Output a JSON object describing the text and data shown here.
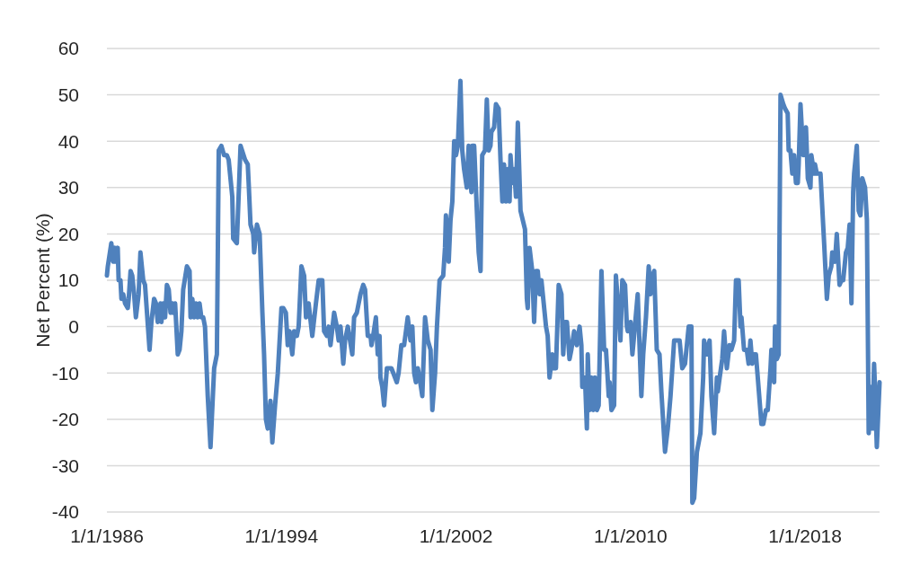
{
  "chart_data": {
    "type": "line",
    "ylabel": "Net Percent (%)",
    "x": [
      "1986-01-01",
      "1986-01-16",
      "1986-03-16",
      "1986-04-16",
      "1986-05-16",
      "1986-06-01",
      "1986-07-01",
      "1986-07-16",
      "1986-08-16",
      "1986-09-01",
      "1986-10-01",
      "1986-11-01",
      "1986-12-16",
      "1987-01-01",
      "1987-02-01",
      "1987-03-01",
      "1987-04-01",
      "1987-05-01",
      "1987-06-16",
      "1987-07-16",
      "1987-09-01",
      "1987-10-01",
      "1987-12-16",
      "1988-01-16",
      "1988-03-01",
      "1988-04-01",
      "1988-05-01",
      "1988-06-16",
      "1988-07-01",
      "1988-08-01",
      "1988-09-01",
      "1988-10-01",
      "1988-11-01",
      "1988-12-01",
      "1989-01-01",
      "1989-01-16",
      "1989-02-16",
      "1989-04-01",
      "1989-05-01",
      "1989-06-01",
      "1989-07-01",
      "1989-09-01",
      "1989-10-16",
      "1989-11-01",
      "1989-12-01",
      "1990-01-01",
      "1990-02-01",
      "1990-03-01",
      "1990-04-01",
      "1990-05-01",
      "1990-06-01",
      "1990-07-01",
      "1990-08-16",
      "1990-10-01",
      "1990-12-01",
      "1991-01-16",
      "1991-02-16",
      "1991-04-01",
      "1991-05-16",
      "1991-07-01",
      "1991-08-01",
      "1991-10-01",
      "1991-10-16",
      "1991-12-16",
      "1992-02-16",
      "1992-05-01",
      "1992-06-16",
      "1992-07-01",
      "1992-08-01",
      "1992-09-16",
      "1992-10-01",
      "1992-11-16",
      "1993-01-01",
      "1993-02-16",
      "1993-03-16",
      "1993-04-16",
      "1993-05-16",
      "1993-07-01",
      "1993-08-01",
      "1993-09-16",
      "1993-11-01",
      "1994-01-01",
      "1994-02-01",
      "1994-03-16",
      "1994-04-16",
      "1994-05-16",
      "1994-07-01",
      "1994-08-01",
      "1994-09-16",
      "1994-10-16",
      "1994-12-01",
      "1995-01-16",
      "1995-02-16",
      "1995-04-01",
      "1995-06-01",
      "1995-08-01",
      "1995-09-16",
      "1995-11-16",
      "1995-12-16",
      "1996-02-01",
      "1996-03-01",
      "1996-04-01",
      "1996-06-01",
      "1996-07-16",
      "1996-08-16",
      "1996-09-16",
      "1996-11-01",
      "1996-12-01",
      "1997-01-16",
      "1997-04-01",
      "1997-05-01",
      "1997-06-16",
      "1997-08-16",
      "1997-10-01",
      "1997-11-01",
      "1997-12-16",
      "1998-02-01",
      "1998-02-16",
      "1998-03-16",
      "1998-05-01",
      "1998-06-01",
      "1998-07-01",
      "1998-07-16",
      "1998-08-16",
      "1998-09-16",
      "1998-11-01",
      "1999-01-16",
      "1999-02-16",
      "1999-04-16",
      "1999-05-16",
      "1999-07-01",
      "1999-08-16",
      "1999-09-16",
      "1999-10-16",
      "1999-12-01",
      "2000-01-01",
      "2000-02-01",
      "2000-03-01",
      "2000-04-01",
      "2000-05-01",
      "2000-06-16",
      "2000-08-01",
      "2000-09-16",
      "2000-11-01",
      "2000-12-01",
      "2001-01-16",
      "2001-02-16",
      "2001-04-01",
      "2001-06-01",
      "2001-07-01",
      "2001-07-16",
      "2001-08-01",
      "2001-09-01",
      "2001-10-01",
      "2001-11-01",
      "2001-12-01",
      "2001-12-16",
      "2002-01-01",
      "2002-02-01",
      "2002-03-16",
      "2002-04-16",
      "2002-05-16",
      "2002-07-01",
      "2002-08-01",
      "2002-09-16",
      "2002-10-01",
      "2002-11-01",
      "2002-12-16",
      "2003-01-16",
      "2003-02-16",
      "2003-03-16",
      "2003-05-01",
      "2003-06-01",
      "2003-07-01",
      "2003-08-01",
      "2003-08-16",
      "2003-10-01",
      "2003-11-01",
      "2003-12-16",
      "2004-01-16",
      "2004-02-16",
      "2004-03-16",
      "2004-04-16",
      "2004-05-16",
      "2004-06-16",
      "2004-07-01",
      "2004-08-01",
      "2004-09-01",
      "2004-10-01",
      "2004-11-01",
      "2004-12-16",
      "2005-03-01",
      "2005-04-01",
      "2005-04-16",
      "2005-05-16",
      "2005-07-01",
      "2005-08-01",
      "2005-09-01",
      "2005-10-01",
      "2005-11-01",
      "2005-12-01",
      "2006-01-01",
      "2006-02-16",
      "2006-03-16",
      "2006-04-16",
      "2006-06-01",
      "2006-07-01",
      "2006-08-01",
      "2006-09-16",
      "2006-11-01",
      "2006-12-01",
      "2007-01-01",
      "2007-02-01",
      "2007-03-16",
      "2007-04-16",
      "2007-06-01",
      "2007-07-16",
      "2007-09-01",
      "2007-10-01",
      "2007-10-16",
      "2007-12-01",
      "2008-01-01",
      "2008-01-16",
      "2008-02-16",
      "2008-03-16",
      "2008-04-16",
      "2008-05-16",
      "2008-06-16",
      "2008-07-16",
      "2008-09-01",
      "2008-10-16",
      "2008-11-16",
      "2009-01-01",
      "2009-01-16",
      "2009-02-16",
      "2009-04-01",
      "2009-05-01",
      "2009-06-16",
      "2009-07-16",
      "2009-08-16",
      "2009-10-01",
      "2009-11-01",
      "2009-11-16",
      "2010-01-01",
      "2010-02-01",
      "2010-03-01",
      "2010-05-01",
      "2010-07-01",
      "2010-08-01",
      "2010-09-16",
      "2010-11-01",
      "2010-12-01",
      "2011-01-01",
      "2011-02-01",
      "2011-03-16",
      "2011-05-01",
      "2011-06-01",
      "2011-08-01",
      "2011-09-16",
      "2011-11-01",
      "2012-01-01",
      "2012-02-16",
      "2012-04-01",
      "2012-05-16",
      "2012-07-01",
      "2012-09-01",
      "2012-10-16",
      "2012-11-01",
      "2012-12-01",
      "2013-01-16",
      "2013-03-16",
      "2013-05-01",
      "2013-05-16",
      "2013-07-01",
      "2013-08-16",
      "2013-09-16",
      "2013-11-01",
      "2013-12-16",
      "2014-01-01",
      "2014-02-01",
      "2014-03-16",
      "2014-04-16",
      "2014-06-01",
      "2014-07-16",
      "2014-08-16",
      "2014-10-01",
      "2014-11-01",
      "2014-12-16",
      "2015-01-16",
      "2015-02-01",
      "2015-03-16",
      "2015-05-01",
      "2015-06-01",
      "2015-07-01",
      "2015-08-01",
      "2015-09-01",
      "2015-10-01",
      "2015-11-01",
      "2016-01-01",
      "2016-02-01",
      "2016-03-16",
      "2016-04-16",
      "2016-06-01",
      "2016-06-16",
      "2016-08-01",
      "2016-08-16",
      "2016-09-16",
      "2016-10-16",
      "2016-11-16",
      "2017-01-01",
      "2017-02-01",
      "2017-03-16",
      "2017-04-01",
      "2017-05-01",
      "2017-06-01",
      "2017-07-01",
      "2017-08-01",
      "2017-09-01",
      "2017-09-16",
      "2017-10-16",
      "2017-12-01",
      "2018-01-01",
      "2018-01-16",
      "2018-02-16",
      "2018-04-01",
      "2018-04-16",
      "2018-06-01",
      "2018-06-16",
      "2018-07-16",
      "2018-09-16",
      "2018-11-16",
      "2019-01-01",
      "2019-02-01",
      "2019-03-16",
      "2019-04-01",
      "2019-05-16",
      "2019-06-16",
      "2019-08-01",
      "2019-09-01",
      "2019-10-01",
      "2019-11-16",
      "2019-12-16",
      "2020-01-16",
      "2020-02-16",
      "2020-03-16",
      "2020-04-01",
      "2020-05-16",
      "2020-06-16",
      "2020-07-16",
      "2020-08-16",
      "2020-10-01",
      "2020-11-01",
      "2020-12-01",
      "2021-01-01",
      "2021-02-01",
      "2021-03-01",
      "2021-03-16",
      "2021-04-16",
      "2021-06-01"
    ],
    "series": [
      {
        "color": "#4f81bd",
        "values": [
          11,
          13,
          18,
          14,
          17,
          14,
          17,
          10,
          10,
          6,
          7,
          5,
          4,
          6,
          12,
          11,
          7,
          2,
          7,
          16,
          10,
          9,
          -5,
          1,
          6,
          5,
          1,
          5,
          1,
          5,
          2,
          9,
          8,
          3,
          5,
          3,
          5,
          -6,
          -5,
          -1,
          8,
          13,
          12,
          2,
          6,
          2,
          5,
          2,
          5,
          2,
          2,
          0,
          -15,
          -26,
          -9,
          -6,
          38,
          39,
          37,
          37,
          36,
          28,
          19,
          18,
          39,
          36,
          35,
          31,
          22,
          20,
          16,
          22,
          20,
          3,
          -6,
          -20,
          -22,
          -16,
          -25,
          -17,
          -10,
          4,
          4,
          3,
          -4,
          -1,
          -6,
          -1,
          -2,
          0,
          13,
          11,
          2,
          5,
          -2,
          5,
          10,
          10,
          -1,
          -2,
          0,
          -4,
          3,
          0,
          -3,
          0,
          -8,
          -3,
          0,
          -6,
          2,
          3,
          7,
          9,
          8,
          -2,
          -2,
          -4,
          -2,
          2,
          -6,
          -2,
          -11,
          -13,
          -17,
          -9,
          -9,
          -10,
          -12,
          -10,
          -4,
          -4,
          -1,
          2,
          -3,
          0,
          -10,
          -12,
          -9,
          -11,
          -15,
          2,
          -3,
          -5,
          -18,
          -10,
          0,
          10,
          11,
          17,
          24,
          21,
          14,
          23,
          27,
          40,
          40,
          37,
          39,
          53,
          38,
          34,
          30,
          39,
          29,
          39,
          39,
          25,
          16,
          12,
          37,
          38,
          49,
          38,
          39,
          42,
          43,
          48,
          47,
          36,
          27,
          35,
          27,
          34,
          27,
          37,
          31,
          34,
          28,
          44,
          25,
          21,
          6,
          4,
          17,
          12,
          1,
          12,
          12,
          7,
          10,
          6,
          0,
          -2,
          -11,
          -6,
          -9,
          -9,
          9,
          7,
          -6,
          1,
          1,
          -7,
          -5,
          -1,
          -4,
          0,
          -4,
          -13,
          -11,
          -22,
          -6,
          -18,
          -11,
          -18,
          -11,
          -18,
          -17,
          12,
          -5,
          -5,
          -15,
          -12,
          -18,
          -17,
          11,
          3,
          -3,
          10,
          9,
          0,
          -1,
          1,
          -6,
          -2,
          7,
          -15,
          -6,
          2,
          13,
          7,
          11,
          12,
          -5,
          -6,
          -14,
          -27,
          -22,
          -15,
          -3,
          -3,
          -3,
          -9,
          -8,
          0,
          0,
          -38,
          -37,
          -27,
          -23,
          -11,
          -3,
          -6,
          -3,
          -15,
          -23,
          -11,
          -14,
          -11,
          -7,
          -1,
          -9,
          -4,
          -5,
          -3,
          10,
          10,
          0,
          2,
          -5,
          -5,
          -8,
          -3,
          -8,
          -6,
          -6,
          -11,
          -21,
          -21,
          -18,
          -18,
          -9,
          -5,
          -12,
          0,
          -7,
          -6,
          50,
          48,
          47,
          46,
          38,
          38,
          33,
          37,
          31,
          31,
          35,
          48,
          37,
          40,
          43,
          32,
          30,
          37,
          33,
          35,
          33,
          33,
          18,
          6,
          11,
          13,
          16,
          14,
          20,
          9,
          10,
          10,
          16,
          17,
          22,
          5,
          29,
          33,
          39,
          25,
          24,
          32,
          30,
          23,
          -23,
          -13,
          -22,
          -8,
          -13,
          -26,
          -12
        ]
      }
    ],
    "xlim": [
      "1986-01-01",
      "2021-06-01"
    ],
    "xticks": [
      {
        "value": "1986-01-01",
        "label": "1/1/1986"
      },
      {
        "value": "1994-01-01",
        "label": "1/1/1994"
      },
      {
        "value": "2002-01-01",
        "label": "1/1/2002"
      },
      {
        "value": "2010-01-01",
        "label": "1/1/2010"
      },
      {
        "value": "2018-01-01",
        "label": "1/1/2018"
      }
    ],
    "ylim": [
      -40,
      60
    ],
    "yticks": [
      -40,
      -30,
      -20,
      -10,
      0,
      10,
      20,
      30,
      40,
      50,
      60
    ],
    "grid": "y"
  }
}
